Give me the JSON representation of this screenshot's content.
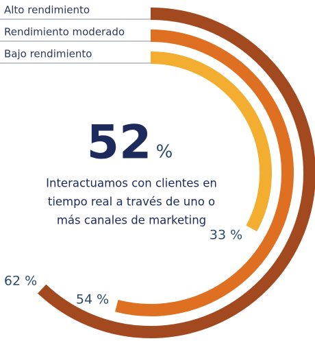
{
  "chart_data": {
    "type": "radial-bar",
    "ylim": [
      0,
      100
    ],
    "center_value": 52,
    "center_unit": "%",
    "description": [
      "Interactuamos con clientes en",
      "tiempo real a través de uno o",
      "más canales de marketing"
    ],
    "series": [
      {
        "name": "Alto rendimiento",
        "color": "#a2491f",
        "values": [
          62
        ],
        "value_labels": [
          "62 %"
        ]
      },
      {
        "name": "Rendimiento moderado",
        "color": "#df6f21",
        "values": [
          54
        ],
        "value_labels": [
          "54 %"
        ]
      },
      {
        "name": "Bajo rendimiento",
        "color": "#f3ad30",
        "values": [
          33
        ],
        "value_labels": [
          "33 %"
        ]
      }
    ]
  }
}
